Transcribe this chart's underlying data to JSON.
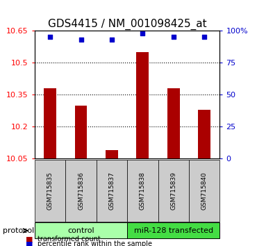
{
  "title": "GDS4415 / NM_001098425_at",
  "samples": [
    "GSM715835",
    "GSM715836",
    "GSM715837",
    "GSM715838",
    "GSM715839",
    "GSM715840"
  ],
  "red_values": [
    10.38,
    10.3,
    10.09,
    10.55,
    10.38,
    10.28
  ],
  "blue_values": [
    95,
    93,
    93,
    98,
    95,
    95
  ],
  "ylim_left": [
    10.05,
    10.65
  ],
  "ylim_right": [
    0,
    100
  ],
  "yticks_left": [
    10.05,
    10.2,
    10.35,
    10.5,
    10.65
  ],
  "yticks_right": [
    0,
    25,
    50,
    75,
    100
  ],
  "ytick_labels_left": [
    "10.05",
    "10.2",
    "10.35",
    "10.5",
    "10.65"
  ],
  "ytick_labels_right": [
    "0",
    "25",
    "50",
    "75",
    "100%"
  ],
  "bar_color": "#aa0000",
  "dot_color": "#0000cc",
  "bar_width": 0.4,
  "group1_label": "control",
  "group2_label": "miR-128 transfected",
  "group1_color": "#aaffaa",
  "group2_color": "#44dd44",
  "protocol_label": "protocol",
  "legend_red": "transformed count",
  "legend_blue": "percentile rank within the sample",
  "label_area_color": "#cccccc",
  "title_fontsize": 11,
  "tick_fontsize": 8,
  "label_fontsize": 9
}
